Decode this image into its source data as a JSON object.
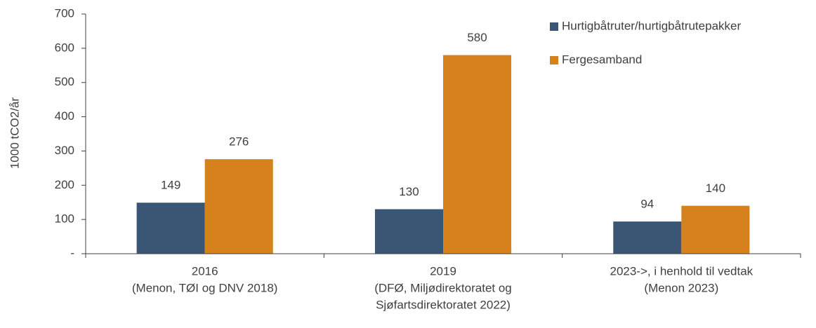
{
  "chart_data": {
    "type": "bar",
    "ylabel": "1000 tCO2/år",
    "categories": [
      [
        "2016",
        "(Menon, TØI og DNV 2018)"
      ],
      [
        "2019",
        "(DFØ, Miljødirektoratet og",
        "Sjøfartsdirektoratet 2022)"
      ],
      [
        "2023->, i henhold til vedtak",
        "(Menon 2023)"
      ]
    ],
    "series": [
      {
        "name": "Hurtigbåtruter/hurtigbåtrutepakker",
        "color": "#3b5675",
        "values": [
          149,
          130,
          94
        ]
      },
      {
        "name": "Fergesamband",
        "color": "#d6811b",
        "values": [
          276,
          580,
          140
        ]
      }
    ],
    "ylim": [
      0,
      700
    ],
    "yticks": [
      {
        "value": 0,
        "label": "-"
      },
      100,
      200,
      300,
      400,
      500,
      600,
      700
    ],
    "legend": "top-right"
  }
}
